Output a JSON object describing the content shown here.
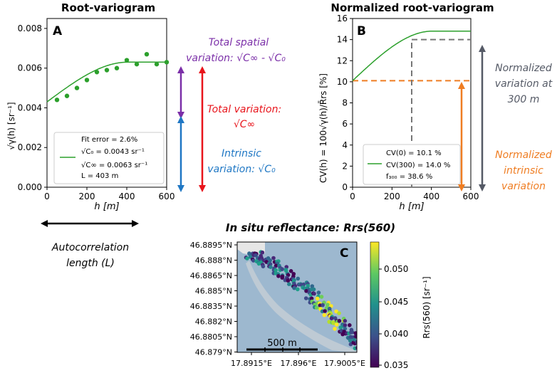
{
  "panelA": {
    "heading": "Root-variogram",
    "letter": "A",
    "ylabel": "√γ(h)  [sr⁻¹]",
    "xlabel": "h [m]",
    "legend": {
      "fit_error": "Fit error = 2.6%",
      "c0": "√C₀ = 0.0043 sr⁻¹",
      "cinf": "√C∞ = 0.0063 sr⁻¹",
      "L": "L = 403 m"
    },
    "annotations": {
      "spatial_1": "Total spatial",
      "spatial_2": "variation: √C∞ - √C₀",
      "total_1": "Total variation:",
      "total_2": "√C∞",
      "intrinsic_1": "Intrinsic",
      "intrinsic_2": "variation: √C₀",
      "autocorr_1": "Autocorrelation",
      "autocorr_2": "length (L)"
    }
  },
  "panelB": {
    "heading": "Normalized root-variogram",
    "letter": "B",
    "ylabel": "CV(h) = 100√γ(h)/R̄rs  [%]",
    "xlabel": "h [m]",
    "legend": {
      "cv0": "CV(0) = 10.1 %",
      "cv300": "CV(300) = 14.0 %",
      "f300": "f₃₀₀ = 38.6 %"
    },
    "annotations": {
      "norm300_1": "Normalized",
      "norm300_2": "variation at",
      "norm300_3": "300 m",
      "normint_1": "Normalized",
      "normint_2": "intrinsic",
      "normint_3": "variation"
    }
  },
  "panelC": {
    "heading": "In situ reflectance: Rrs(560)",
    "letter": "C",
    "scalebar": "500 m",
    "colorbar_label": "Rrs(560) [sr⁻¹]",
    "colorbar_ticks": [
      "0.050",
      "0.045",
      "0.040",
      "0.035"
    ]
  },
  "colors": {
    "fit": "#2ca02c",
    "spatial": "#7b2fa8",
    "total": "#e8141b",
    "intrinsic": "#1f77c4",
    "norm300": "#555a66",
    "normint": "#ef7d22",
    "water": "#9db8cf",
    "land": "#e6e6e6"
  },
  "chart_data": [
    {
      "type": "scatter",
      "title": "Root-variogram",
      "xlabel": "h [m]",
      "ylabel": "√γ(h) [sr⁻¹]",
      "xlim": [
        0,
        600
      ],
      "ylim": [
        0,
        0.0085
      ],
      "xticks": [
        0,
        200,
        400,
        600
      ],
      "yticks": [
        0.0,
        0.002,
        0.004,
        0.006,
        0.008
      ],
      "ytick_labels": [
        "0.000",
        "0.002",
        "0.004",
        "0.006",
        "0.008"
      ],
      "x": [
        50,
        100,
        150,
        200,
        250,
        300,
        350,
        400,
        450,
        500,
        550,
        600
      ],
      "y": [
        0.0044,
        0.0046,
        0.005,
        0.0054,
        0.0058,
        0.0059,
        0.006,
        0.0064,
        0.0062,
        0.0067,
        0.0062,
        0.0063
      ],
      "fit": {
        "c0_sqrt": 0.0043,
        "cinf_sqrt": 0.0063,
        "L": 403
      }
    },
    {
      "type": "line",
      "title": "Normalized root-variogram",
      "xlabel": "h [m]",
      "ylabel": "CV(h) [%]",
      "xlim": [
        0,
        600
      ],
      "ylim": [
        0,
        16
      ],
      "xticks": [
        0,
        200,
        400,
        600
      ],
      "yticks": [
        0,
        2,
        4,
        6,
        8,
        10,
        12,
        14,
        16
      ],
      "series": [
        {
          "name": "CV(h)",
          "cv0": 10.1,
          "cvmax": 14.8,
          "L": 403
        }
      ],
      "hlines": [
        {
          "y": 10.1,
          "style": "dashed-orange"
        },
        {
          "y": 14.0,
          "x_from": 300,
          "style": "dashed-gray"
        }
      ],
      "vlines": [
        {
          "x": 300,
          "y_to": 14.0,
          "style": "dashed-gray"
        }
      ]
    },
    {
      "type": "scatter",
      "title": "In situ reflectance: Rrs(560)",
      "xtick_labels": [
        "17.8915°E",
        "17.896°E",
        "17.9005°E"
      ],
      "ytick_labels": [
        "46.8895°N",
        "46.888°N",
        "46.8865°N",
        "46.885°N",
        "46.8835°N",
        "46.882°N",
        "46.8805°N",
        "46.879°N"
      ],
      "colorbar_range": [
        0.035,
        0.053
      ]
    }
  ]
}
